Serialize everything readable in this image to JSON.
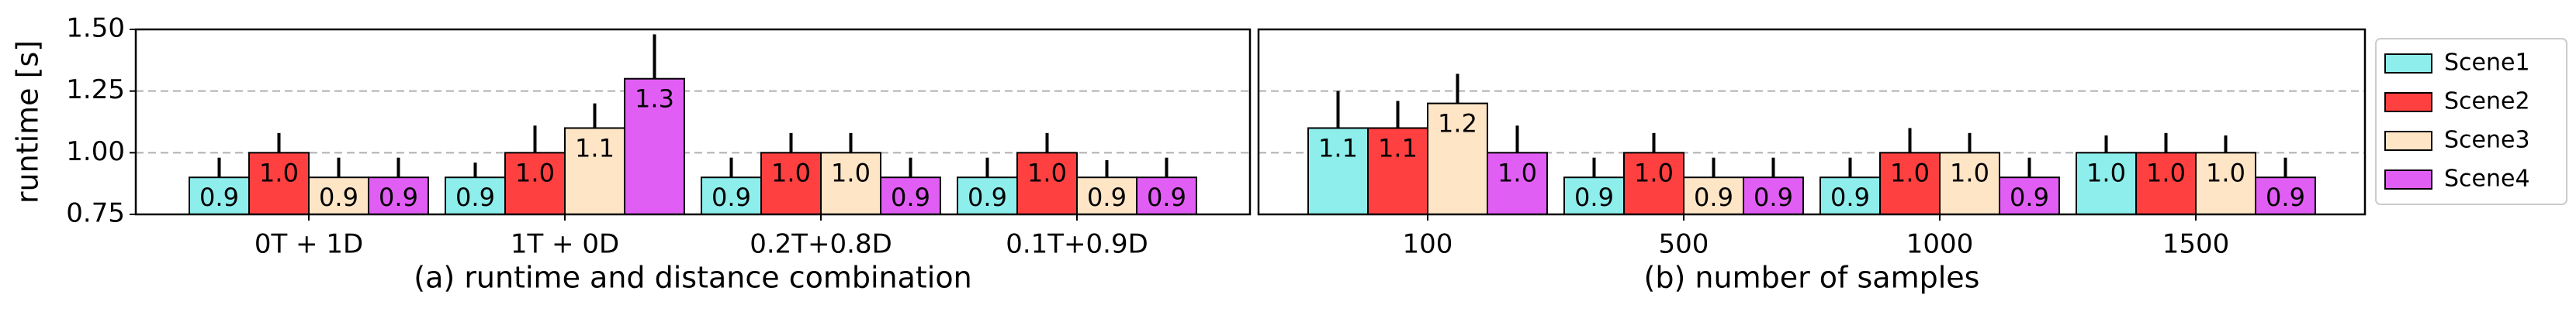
{
  "chart_data": [
    {
      "type": "bar",
      "ylabel": "runtime [s]",
      "xlabel": "(a) runtime and distance combination",
      "categories": [
        "0T + 1D",
        "1T + 0D",
        "0.2T+0.8D",
        "0.1T+0.9D"
      ],
      "ylim": [
        0.75,
        1.5
      ],
      "yticks": [
        {
          "value": 0.75,
          "label": "0.75"
        },
        {
          "value": 1.0,
          "label": "1.00"
        },
        {
          "value": 1.25,
          "label": "1.25"
        },
        {
          "value": 1.5,
          "label": "1.50"
        }
      ],
      "grid": true,
      "series": [
        {
          "color": "#8eeeec",
          "values": [
            0.9,
            0.9,
            0.9,
            0.9
          ],
          "value_labels": [
            "0.9",
            "0.9",
            "0.9",
            "0.9"
          ],
          "errors": [
            0.08,
            0.06,
            0.08,
            0.08
          ]
        },
        {
          "color": "#ff4040",
          "values": [
            1.0,
            1.0,
            1.0,
            1.0
          ],
          "value_labels": [
            "1.0",
            "1.0",
            "1.0",
            "1.0"
          ],
          "errors": [
            0.08,
            0.11,
            0.08,
            0.08
          ]
        },
        {
          "color": "#fde5c6",
          "values": [
            0.9,
            1.1,
            1.0,
            0.9
          ],
          "value_labels": [
            "0.9",
            "1.1",
            "1.0",
            "0.9"
          ],
          "errors": [
            0.08,
            0.1,
            0.08,
            0.07
          ]
        },
        {
          "color": "#e15ef5",
          "values": [
            0.9,
            1.3,
            0.9,
            0.9
          ],
          "value_labels": [
            "0.9",
            "1.3",
            "0.9",
            "0.9"
          ],
          "errors": [
            0.08,
            0.18,
            0.08,
            0.08
          ]
        }
      ]
    },
    {
      "type": "bar",
      "xlabel": "(b) number of samples",
      "categories": [
        "100",
        "500",
        "1000",
        "1500"
      ],
      "ylim": [
        0.75,
        1.5
      ],
      "yticks": [
        0.75,
        1.0,
        1.25,
        1.5
      ],
      "grid": true,
      "legend": "right outside",
      "series": [
        {
          "name": "Scene1",
          "color": "#8eeeec",
          "values": [
            1.1,
            0.9,
            0.9,
            1.0
          ],
          "value_labels": [
            "1.1",
            "0.9",
            "0.9",
            "1.0"
          ],
          "errors": [
            0.15,
            0.08,
            0.08,
            0.07
          ]
        },
        {
          "name": "Scene2",
          "color": "#ff4040",
          "values": [
            1.1,
            1.0,
            1.0,
            1.0
          ],
          "value_labels": [
            "1.1",
            "1.0",
            "1.0",
            "1.0"
          ],
          "errors": [
            0.11,
            0.08,
            0.1,
            0.08
          ]
        },
        {
          "name": "Scene3",
          "color": "#fde5c6",
          "values": [
            1.2,
            0.9,
            1.0,
            1.0
          ],
          "value_labels": [
            "1.2",
            "0.9",
            "1.0",
            "1.0"
          ],
          "errors": [
            0.12,
            0.08,
            0.08,
            0.07
          ]
        },
        {
          "name": "Scene4",
          "color": "#e15ef5",
          "values": [
            1.0,
            0.9,
            0.9,
            0.9
          ],
          "value_labels": [
            "1.0",
            "0.9",
            "0.9",
            "0.9"
          ],
          "errors": [
            0.11,
            0.08,
            0.08,
            0.08
          ]
        }
      ]
    }
  ]
}
